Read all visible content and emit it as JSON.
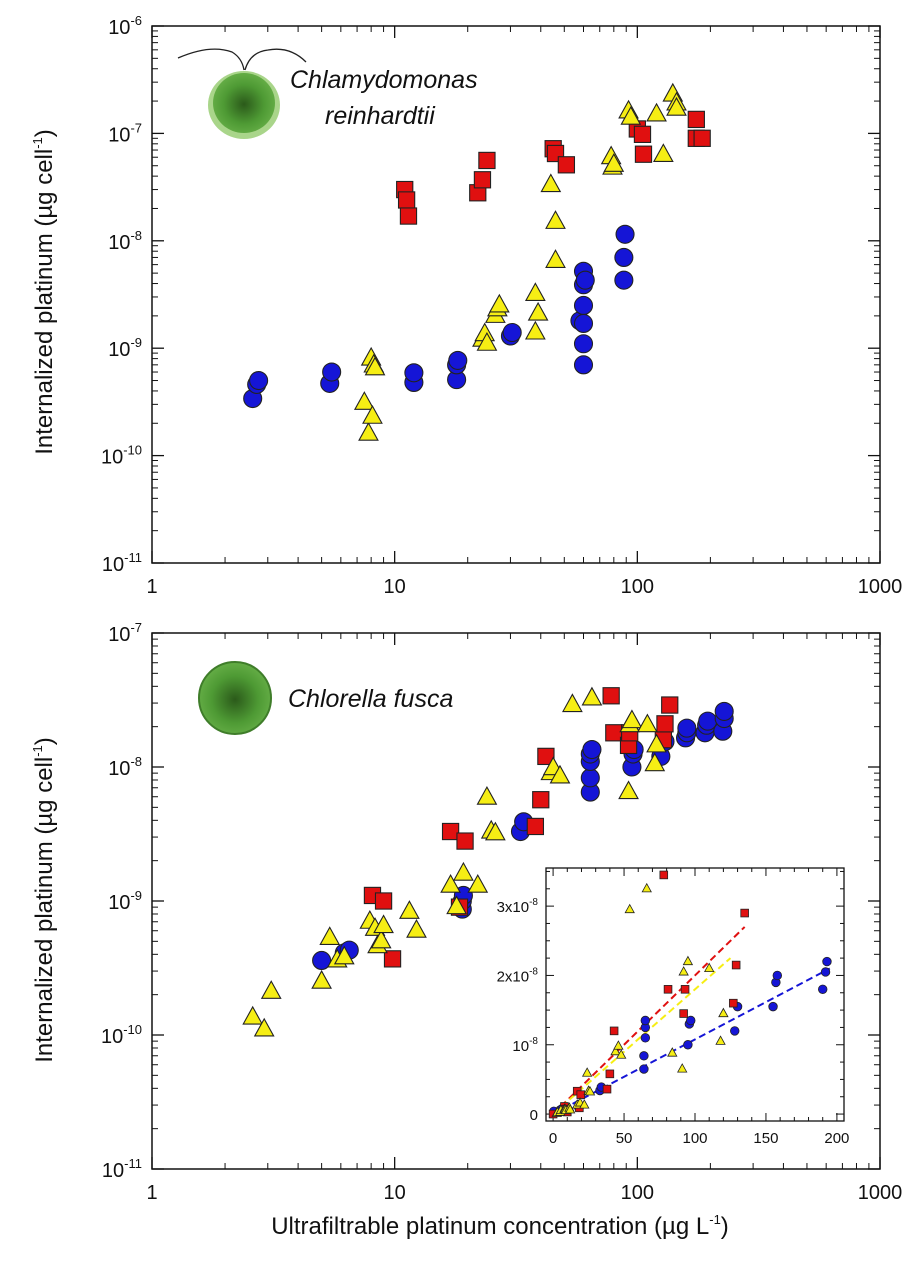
{
  "colors": {
    "circle": "#1515d6",
    "square": "#e01010",
    "triangle": "#f6ee14",
    "outline": "#222222",
    "algae_dark": "#2e6b1e",
    "algae_mid": "#4e9a34",
    "algae_light": "#a9d58a"
  },
  "figure": {
    "xlabel_main": "Ultrafiltrable platinum concentration (µg L",
    "xlabel_sup": "-1",
    "xlabel_end": ")"
  },
  "chart_data": [
    {
      "type": "scatter",
      "species_label_line1": "Chlamydomonas",
      "species_label_line2": "reinhardtii",
      "xscale": "log",
      "yscale": "log",
      "xlim": [
        1,
        1000
      ],
      "ylim": [
        1e-11,
        1e-06
      ],
      "x_ticks": [
        {
          "v": 1,
          "label": "1"
        },
        {
          "v": 10,
          "label": "10"
        },
        {
          "v": 100,
          "label": "100"
        },
        {
          "v": 1000,
          "label": "1000"
        }
      ],
      "y_ticks": [
        {
          "v": 1e-11,
          "base": "10",
          "exp": "-11"
        },
        {
          "v": 1e-10,
          "base": "10",
          "exp": "-10"
        },
        {
          "v": 1e-09,
          "base": "10",
          "exp": "-9"
        },
        {
          "v": 1e-08,
          "base": "10",
          "exp": "-8"
        },
        {
          "v": 1e-07,
          "base": "10",
          "exp": "-7"
        },
        {
          "v": 1e-06,
          "base": "10",
          "exp": "-6"
        }
      ],
      "ylabel_main": "Internalized platinum (µg cell",
      "ylabel_sup": "-1",
      "ylabel_end": ")",
      "series": [
        {
          "marker": "circle",
          "points": [
            [
              2.6,
              3.4e-10
            ],
            [
              2.7,
              4.6e-10
            ],
            [
              2.75,
              5e-10
            ],
            [
              5.4,
              4.7e-10
            ],
            [
              5.5,
              6e-10
            ],
            [
              12,
              4.8e-10
            ],
            [
              12,
              5.9e-10
            ],
            [
              18,
              5.1e-10
            ],
            [
              18,
              7e-10
            ],
            [
              18.2,
              7.7e-10
            ],
            [
              30,
              1.3e-09
            ],
            [
              30.5,
              1.4e-09
            ],
            [
              58,
              1.8e-09
            ],
            [
              60,
              3.9e-09
            ],
            [
              60,
              5.2e-09
            ],
            [
              61,
              4.3e-09
            ],
            [
              60,
              2.5e-09
            ],
            [
              60,
              1.7e-09
            ],
            [
              60,
              1.1e-09
            ],
            [
              60,
              7e-10
            ],
            [
              88,
              4.3e-09
            ],
            [
              88,
              7e-09
            ],
            [
              89,
              1.15e-08
            ]
          ]
        },
        {
          "marker": "square",
          "points": [
            [
              11,
              3e-08
            ],
            [
              11.2,
              2.4e-08
            ],
            [
              11.4,
              1.7e-08
            ],
            [
              22,
              2.8e-08
            ],
            [
              23,
              3.7e-08
            ],
            [
              24,
              5.6e-08
            ],
            [
              45,
              7.2e-08
            ],
            [
              46,
              6.5e-08
            ],
            [
              51,
              5.1e-08
            ],
            [
              100,
              1.1e-07
            ],
            [
              105,
              9.8e-08
            ],
            [
              106,
              6.4e-08
            ],
            [
              175,
              1.35e-07
            ],
            [
              175,
              9e-08
            ],
            [
              185,
              9e-08
            ]
          ]
        },
        {
          "marker": "triangle",
          "points": [
            [
              7.5,
              3.1e-10
            ],
            [
              7.8,
              1.6e-10
            ],
            [
              8.1,
              2.3e-10
            ],
            [
              8.0,
              8e-10
            ],
            [
              8.2,
              6.9e-10
            ],
            [
              8.3,
              6.5e-10
            ],
            [
              23,
              1.2e-09
            ],
            [
              23.5,
              1.35e-09
            ],
            [
              24,
              1.1e-09
            ],
            [
              26,
              2e-09
            ],
            [
              26.5,
              2.3e-09
            ],
            [
              27,
              2.5e-09
            ],
            [
              38,
              1.4e-09
            ],
            [
              39,
              2.1e-09
            ],
            [
              38,
              3.2e-09
            ],
            [
              44,
              3.3e-08
            ],
            [
              46,
              1.5e-08
            ],
            [
              46,
              6.5e-09
            ],
            [
              78,
              6e-08
            ],
            [
              79,
              4.8e-08
            ],
            [
              80,
              5.1e-08
            ],
            [
              92,
              1.6e-07
            ],
            [
              94,
              1.4e-07
            ],
            [
              120,
              1.5e-07
            ],
            [
              128,
              6.3e-08
            ],
            [
              140,
              2.3e-07
            ],
            [
              145,
              1.9e-07
            ],
            [
              145,
              1.7e-07
            ]
          ]
        }
      ]
    },
    {
      "type": "scatter",
      "species_label_line1": "Chlorella fusca",
      "species_label_line2": "",
      "xscale": "log",
      "yscale": "log",
      "xlim": [
        1,
        1000
      ],
      "ylim": [
        1e-11,
        1e-07
      ],
      "x_ticks": [
        {
          "v": 1,
          "label": "1"
        },
        {
          "v": 10,
          "label": "10"
        },
        {
          "v": 100,
          "label": "100"
        },
        {
          "v": 1000,
          "label": "1000"
        }
      ],
      "y_ticks": [
        {
          "v": 1e-11,
          "base": "10",
          "exp": "-11"
        },
        {
          "v": 1e-10,
          "base": "10",
          "exp": "-10"
        },
        {
          "v": 1e-09,
          "base": "10",
          "exp": "-9"
        },
        {
          "v": 1e-08,
          "base": "10",
          "exp": "-8"
        },
        {
          "v": 1e-07,
          "base": "10",
          "exp": "-7"
        }
      ],
      "ylabel_main": "Internalized platinum (µg cell",
      "ylabel_sup": "-1",
      "ylabel_end": ")",
      "series": [
        {
          "marker": "circle",
          "points": [
            [
              5,
              3.6e-10
            ],
            [
              6.2,
              4.1e-10
            ],
            [
              6.5,
              4.3e-10
            ],
            [
              19,
              8.7e-10
            ],
            [
              19,
              1e-09
            ],
            [
              19.2,
              1.1e-09
            ],
            [
              33,
              3.3e-09
            ],
            [
              34,
              3.9e-09
            ],
            [
              64,
              6.5e-09
            ],
            [
              64,
              8.3e-09
            ],
            [
              64,
              1.1e-08
            ],
            [
              64,
              1.25e-08
            ],
            [
              65,
              1.35e-08
            ],
            [
              95,
              1e-08
            ],
            [
              96,
              1.25e-08
            ],
            [
              97,
              1.35e-08
            ],
            [
              125,
              1.2e-08
            ],
            [
              130,
              1.55e-08
            ],
            [
              158,
              1.65e-08
            ],
            [
              160,
              1.8e-08
            ],
            [
              160,
              1.95e-08
            ],
            [
              190,
              1.8e-08
            ],
            [
              193,
              2.05e-08
            ],
            [
              195,
              2.2e-08
            ],
            [
              225,
              1.85e-08
            ],
            [
              228,
              2.3e-08
            ],
            [
              228,
              2.6e-08
            ]
          ]
        },
        {
          "marker": "square",
          "points": [
            [
              8.1,
              1.1e-09
            ],
            [
              9.0,
              1e-09
            ],
            [
              9.8,
              3.7e-10
            ],
            [
              17,
              3.3e-09
            ],
            [
              18.5,
              9e-10
            ],
            [
              19.5,
              2.8e-09
            ],
            [
              38,
              3.6e-09
            ],
            [
              40,
              5.7e-09
            ],
            [
              42,
              1.2e-08
            ],
            [
              78,
              3.4e-08
            ],
            [
              80,
              1.8e-08
            ],
            [
              92,
              1.45e-08
            ],
            [
              93,
              1.8e-08
            ],
            [
              128,
              1.6e-08
            ],
            [
              130,
              2.1e-08
            ],
            [
              136,
              2.9e-08
            ]
          ]
        },
        {
          "marker": "triangle",
          "points": [
            [
              2.6,
              1.35e-10
            ],
            [
              2.9,
              1.1e-10
            ],
            [
              3.1,
              2.1e-10
            ],
            [
              5.0,
              2.5e-10
            ],
            [
              5.4,
              5.3e-10
            ],
            [
              5.8,
              3.6e-10
            ],
            [
              6.2,
              3.8e-10
            ],
            [
              7.9,
              7e-10
            ],
            [
              8.3,
              6.2e-10
            ],
            [
              8.5,
              4.6e-10
            ],
            [
              8.8,
              5e-10
            ],
            [
              9.0,
              6.5e-10
            ],
            [
              11.5,
              8.3e-10
            ],
            [
              12.3,
              6e-10
            ],
            [
              17,
              1.3e-09
            ],
            [
              18,
              9e-10
            ],
            [
              19.2,
              1.6e-09
            ],
            [
              22,
              1.3e-09
            ],
            [
              24,
              5.9e-09
            ],
            [
              25,
              3.3e-09
            ],
            [
              26,
              3.2e-09
            ],
            [
              44,
              9e-09
            ],
            [
              45,
              9.8e-09
            ],
            [
              48,
              8.5e-09
            ],
            [
              54,
              2.9e-08
            ],
            [
              65,
              3.25e-08
            ],
            [
              92,
              6.5e-09
            ],
            [
              93,
              2.05e-08
            ],
            [
              95,
              2.2e-08
            ],
            [
              110,
              2.05e-08
            ],
            [
              118,
              1.05e-08
            ],
            [
              120,
              1.45e-08
            ]
          ]
        }
      ]
    },
    {
      "type": "scatter",
      "role": "inset",
      "xscale": "linear",
      "yscale": "linear",
      "xlim": [
        -5,
        205
      ],
      "ylim": [
        -1e-09,
        3.55e-08
      ],
      "x_ticks": [
        {
          "v": 0,
          "label": "0"
        },
        {
          "v": 50,
          "label": "50"
        },
        {
          "v": 100,
          "label": "100"
        },
        {
          "v": 150,
          "label": "150"
        },
        {
          "v": 200,
          "label": "200"
        }
      ],
      "y_ticks": [
        {
          "v": 0,
          "label": "0",
          "exp": ""
        },
        {
          "v": 1e-08,
          "label": "10",
          "exp": "-8"
        },
        {
          "v": 2e-08,
          "label": "2x10",
          "exp": "-8"
        },
        {
          "v": 3e-08,
          "label": "3x10",
          "exp": "-8"
        }
      ],
      "series": [
        {
          "marker": "circle",
          "points": [
            [
              0.5,
              4e-10
            ],
            [
              5,
              6e-10
            ],
            [
              6.5,
              8e-10
            ],
            [
              18,
              1e-09
            ],
            [
              19,
              1.2e-09
            ],
            [
              33,
              3.4e-09
            ],
            [
              34,
              3.9e-09
            ],
            [
              64,
              6.5e-09
            ],
            [
              64,
              8.4e-09
            ],
            [
              65,
              1.1e-08
            ],
            [
              65,
              1.25e-08
            ],
            [
              65,
              1.35e-08
            ],
            [
              95,
              1e-08
            ],
            [
              96,
              1.3e-08
            ],
            [
              97,
              1.35e-08
            ],
            [
              128,
              1.2e-08
            ],
            [
              130,
              1.55e-08
            ],
            [
              155,
              1.55e-08
            ],
            [
              157,
              1.9e-08
            ],
            [
              158,
              2e-08
            ],
            [
              190,
              1.8e-08
            ],
            [
              192,
              2.05e-08
            ],
            [
              193,
              2.2e-08
            ]
          ]
        },
        {
          "marker": "square",
          "points": [
            [
              0,
              0
            ],
            [
              8,
              1.1e-09
            ],
            [
              9,
              7e-10
            ],
            [
              10,
              3e-10
            ],
            [
              17,
              3.3e-09
            ],
            [
              18.5,
              9e-10
            ],
            [
              19.5,
              2.8e-09
            ],
            [
              38,
              3.6e-09
            ],
            [
              40,
              5.8e-09
            ],
            [
              43,
              1.2e-08
            ],
            [
              78,
              3.45e-08
            ],
            [
              81,
              1.8e-08
            ],
            [
              92,
              1.45e-08
            ],
            [
              93,
              1.8e-08
            ],
            [
              127,
              1.6e-08
            ],
            [
              129,
              2.15e-08
            ],
            [
              135,
              2.9e-08
            ]
          ]
        },
        {
          "marker": "triangle",
          "points": [
            [
              2.6,
              1e-10
            ],
            [
              3,
              2e-10
            ],
            [
              5,
              2.5e-10
            ],
            [
              5.5,
              5.3e-10
            ],
            [
              8,
              7e-10
            ],
            [
              8.5,
              6.5e-10
            ],
            [
              9,
              5e-10
            ],
            [
              11.5,
              8.5e-10
            ],
            [
              12,
              6e-10
            ],
            [
              17,
              1.3e-09
            ],
            [
              19,
              1.6e-09
            ],
            [
              22,
              1.3e-09
            ],
            [
              24,
              5.9e-09
            ],
            [
              25,
              3.3e-09
            ],
            [
              26,
              3.2e-09
            ],
            [
              44,
              9e-09
            ],
            [
              46,
              9.8e-09
            ],
            [
              48,
              8.5e-09
            ],
            [
              54,
              2.95e-08
            ],
            [
              66,
              3.25e-08
            ],
            [
              84,
              8.8e-09
            ],
            [
              91,
              6.5e-09
            ],
            [
              92,
              2.05e-08
            ],
            [
              95,
              2.2e-08
            ],
            [
              110,
              2.1e-08
            ],
            [
              118,
              1.05e-08
            ],
            [
              120,
              1.45e-08
            ]
          ]
        }
      ],
      "fit_lines": [
        {
          "series": "square",
          "color": "#e01010",
          "x": [
            0,
            135
          ],
          "y": [
            0,
            2.7e-08
          ]
        },
        {
          "series": "triangle",
          "color": "#f6ee14",
          "x": [
            0,
            125
          ],
          "y": [
            0,
            2.25e-08
          ]
        },
        {
          "series": "circle",
          "color": "#1515d6",
          "x": [
            0,
            195
          ],
          "y": [
            0,
            2.1e-08
          ]
        }
      ]
    }
  ]
}
